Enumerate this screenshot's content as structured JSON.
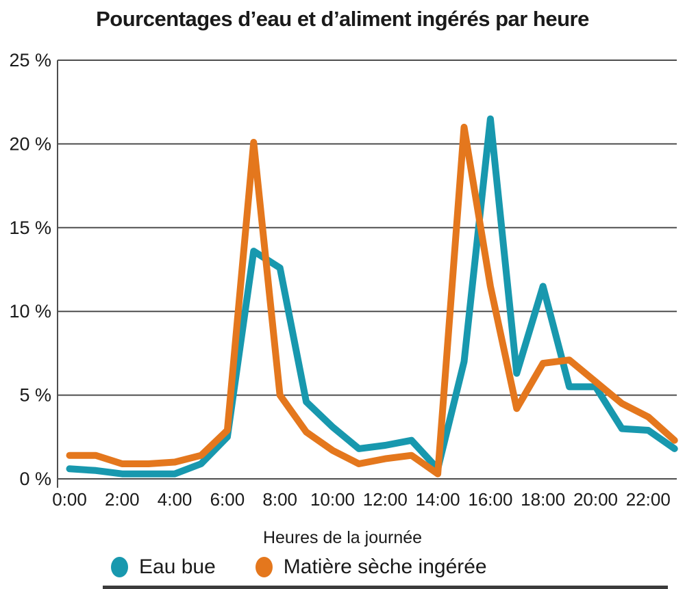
{
  "title": "Pourcentages d’eau et d’aliment ingérés par heure",
  "colors": {
    "eau_bue": "#1898ae",
    "matiere_seche": "#e4771d",
    "grid": "#4d4d4d",
    "text": "#1a1a1a"
  },
  "chart_data": {
    "type": "line",
    "title": "Pourcentages d’eau et d’aliment ingérés par heure",
    "xlabel": "Heures de la journée",
    "ylabel": "",
    "x_hours": [
      0,
      1,
      2,
      3,
      4,
      5,
      6,
      7,
      8,
      9,
      10,
      11,
      12,
      13,
      14,
      15,
      16,
      17,
      18,
      19,
      20,
      21,
      22,
      23
    ],
    "x_tick_hours": [
      0,
      2,
      4,
      6,
      8,
      10,
      12,
      14,
      16,
      18,
      20,
      22
    ],
    "x_tick_labels": [
      "0:00",
      "2:00",
      "4:00",
      "6:00",
      "8:00",
      "10:00",
      "12:00",
      "14:00",
      "16:00",
      "18:00",
      "20:00",
      "22:00"
    ],
    "y_ticks": [
      0,
      5,
      10,
      15,
      20,
      25
    ],
    "y_tick_labels": [
      "0 %",
      "5 %",
      "10 %",
      "15 %",
      "20 %",
      "25 %"
    ],
    "ylim": [
      0,
      25
    ],
    "grid": "horizontal",
    "legend_position": "bottom",
    "series": [
      {
        "name": "Eau bue",
        "color": "#1898ae",
        "values": [
          0.6,
          0.5,
          0.3,
          0.3,
          0.3,
          0.9,
          2.5,
          13.6,
          12.6,
          4.6,
          3.1,
          1.8,
          2.0,
          2.3,
          0.6,
          7.0,
          21.5,
          6.3,
          11.5,
          5.5,
          5.5,
          3.0,
          2.9,
          1.8
        ]
      },
      {
        "name": "Matière sèche ingérée",
        "color": "#e4771d",
        "values": [
          1.4,
          1.4,
          0.9,
          0.9,
          1.0,
          1.4,
          2.9,
          20.1,
          5.0,
          2.8,
          1.7,
          0.9,
          1.2,
          1.4,
          0.3,
          21.0,
          11.5,
          4.2,
          6.9,
          7.1,
          5.8,
          4.5,
          3.7,
          2.3
        ]
      }
    ]
  }
}
